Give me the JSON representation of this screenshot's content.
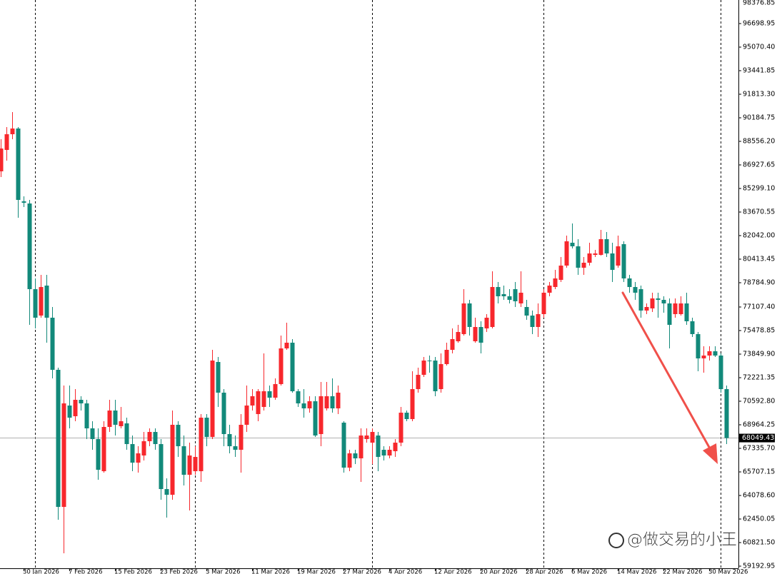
{
  "chart_data": {
    "type": "candlestick",
    "categories": [
      null,
      null,
      null,
      null,
      "30 Jan 2026",
      null,
      null,
      null,
      null,
      null,
      null,
      null,
      "7 Feb 2026",
      null,
      null,
      null,
      null,
      null,
      null,
      null,
      "15 Feb 2026",
      null,
      null,
      null,
      null,
      null,
      null,
      null,
      "23 Feb 2026",
      null,
      null,
      null,
      null,
      null,
      null,
      null,
      "3 Mar 2026",
      null,
      null,
      null,
      null,
      null,
      null,
      null,
      "11 Mar 2026",
      null,
      null,
      null,
      null,
      null,
      null,
      null,
      "19 Mar 2026",
      null,
      null,
      null,
      null,
      null,
      null,
      null,
      "27 Mar 2026",
      null,
      null,
      null,
      null,
      null,
      null,
      null,
      "4 Apr 2026",
      null,
      null,
      null,
      null,
      null,
      null,
      null,
      "12 Apr 2026",
      null,
      null,
      null,
      null,
      null,
      null,
      null,
      "20 Apr 2026",
      null,
      null,
      null,
      null,
      null,
      null,
      null,
      "28 Apr 2026",
      null,
      null,
      null,
      null,
      null,
      null,
      null,
      "6 May 2026",
      null,
      null,
      null,
      null,
      null,
      null,
      null,
      "14 May 2026",
      null,
      null,
      null,
      null,
      null,
      null,
      null,
      "22 May 2026",
      null,
      null,
      null,
      null,
      null,
      null,
      null,
      "30 May 2026",
      null,
      null,
      null
    ],
    "open": [
      86483,
      87963,
      89049,
      89444,
      84410,
      84262,
      78340,
      76514,
      78587,
      76366,
      72764,
      63289,
      70296,
      69556,
      70691,
      70444,
      68717,
      67977,
      65756,
      68816,
      69951,
      68866,
      69063,
      67631,
      66348,
      66842,
      67829,
      68470,
      67631,
      64522,
      64128,
      68964,
      67483,
      65509,
      65756,
      65756,
      69457,
      68125,
      73307,
      71185,
      68322,
      67483,
      67237,
      68964,
      70296,
      69704,
      70198,
      71283,
      70839,
      71777,
      74244,
      74639,
      71283,
      70444,
      70099,
      70592,
      68322,
      70099,
      70938,
      70099,
      69112,
      66003,
      66990,
      66644,
      67977,
      67730,
      68224,
      67237,
      66842,
      67138,
      67730,
      69802,
      69359,
      71431,
      72418,
      73405,
      73405,
      71431,
      73159,
      74146,
      74738,
      75232,
      77353,
      74738,
      75725,
      75626,
      75725,
      78488,
      77995,
      77847,
      78340,
      77353,
      77107,
      76514,
      75725,
      76613,
      78094,
      78488,
      78982,
      79969,
      81548,
      81301,
      79821,
      80167,
      80709,
      80709,
      81795,
      80808,
      79969,
      81450,
      79081,
      78488,
      78340,
      76860,
      77008,
      77699,
      77600,
      77353,
      76613,
      76613,
      77353,
      76120,
      75232,
      73553,
      73751,
      74047,
      73751,
      71431
    ],
    "high": [
      88703,
      89542,
      90580,
      89542,
      84755,
      84509,
      79081,
      79327,
      79327,
      77107,
      72912,
      71678,
      71678,
      71431,
      70938,
      70691,
      69211,
      68717,
      69211,
      70691,
      70691,
      70198,
      69457,
      68224,
      67483,
      68470,
      68717,
      68717,
      67977,
      65263,
      69951,
      69211,
      68224,
      67730,
      67483,
      69704,
      69704,
      74146,
      73652,
      71431,
      68964,
      68224,
      69704,
      71678,
      71431,
      71431,
      73899,
      71678,
      72172,
      75133,
      76021,
      74886,
      71431,
      71431,
      70938,
      70938,
      71925,
      71925,
      72172,
      71678,
      69211,
      67237,
      67237,
      68717,
      68717,
      68717,
      68470,
      67483,
      67483,
      67977,
      70198,
      69951,
      72665,
      72912,
      73652,
      73751,
      73652,
      73899,
      74639,
      75626,
      75873,
      78340,
      77600,
      76366,
      76120,
      76613,
      79574,
      78834,
      78587,
      78340,
      78834,
      79574,
      77600,
      76860,
      77353,
      78340,
      78834,
      79673,
      80561,
      82042,
      82881,
      81795,
      80561,
      81548,
      81055,
      82436,
      82288,
      81548,
      82042,
      81647,
      79327,
      78834,
      78587,
      77353,
      78094,
      78094,
      77847,
      77699,
      77699,
      77847,
      78094,
      76366,
      75380,
      74392,
      74392,
      74392,
      73899,
      71678
    ],
    "low": [
      86088,
      87223,
      88703,
      83275,
      84015,
      75873,
      75626,
      76366,
      74639,
      72172,
      62400,
      60081,
      68717,
      69211,
      69951,
      67977,
      67237,
      65164,
      65657,
      68470,
      68224,
      68717,
      67237,
      65756,
      65657,
      66496,
      67483,
      67237,
      63782,
      62548,
      63782,
      66743,
      64769,
      63042,
      65509,
      65016,
      67483,
      67977,
      70198,
      67483,
      66990,
      66743,
      65657,
      68470,
      69951,
      69211,
      69951,
      70198,
      70691,
      71678,
      74146,
      71185,
      70198,
      69457,
      69802,
      68125,
      67483,
      69951,
      69802,
      69704,
      65657,
      65756,
      66250,
      65016,
      67730,
      66250,
      65756,
      66496,
      66644,
      66743,
      67483,
      69211,
      69211,
      71185,
      72270,
      72566,
      70938,
      71185,
      73060,
      73899,
      74639,
      75133,
      75133,
      74639,
      73899,
      75380,
      75626,
      77353,
      77600,
      77353,
      77107,
      77107,
      76219,
      75232,
      75034,
      76366,
      77847,
      78340,
      78834,
      79821,
      81154,
      79327,
      79327,
      79969,
      80561,
      80660,
      80561,
      78834,
      79821,
      78834,
      78094,
      77600,
      76366,
      76613,
      76761,
      76366,
      76712,
      74244,
      76366,
      76514,
      75873,
      75034,
      72665,
      72566,
      73405,
      73652,
      71185,
      67631
    ],
    "close": [
      88062,
      89049,
      89444,
      84509,
      84312,
      78340,
      76366,
      78488,
      76366,
      72764,
      63289,
      70444,
      69457,
      70691,
      70444,
      68717,
      67977,
      65855,
      68816,
      69951,
      68964,
      69211,
      67631,
      66348,
      66990,
      67829,
      68470,
      67631,
      64522,
      64128,
      68964,
      67483,
      65509,
      66842,
      66743,
      69457,
      68125,
      73405,
      71185,
      68322,
      67483,
      67237,
      68964,
      70296,
      70938,
      71283,
      71283,
      70839,
      71777,
      74244,
      74639,
      71283,
      70444,
      70099,
      70592,
      68224,
      70938,
      70938,
      70099,
      71185,
      66003,
      66990,
      66644,
      68224,
      68224,
      68470,
      66743,
      66842,
      67237,
      67730,
      69802,
      69359,
      71431,
      72418,
      73405,
      73405,
      71283,
      73159,
      74146,
      74886,
      75380,
      77353,
      75725,
      75725,
      74639,
      76366,
      78488,
      77847,
      77847,
      77600,
      77501,
      78094,
      76514,
      75725,
      76613,
      78094,
      78587,
      79081,
      79969,
      81647,
      81301,
      79821,
      80167,
      80808,
      80808,
      81795,
      80808,
      79673,
      81301,
      79081,
      78488,
      78094,
      76860,
      77107,
      77699,
      77600,
      77353,
      75873,
      77353,
      77353,
      76120,
      75232,
      73553,
      73751,
      74047,
      73751,
      71431,
      68049.43
    ],
    "up_color": "#f7272c",
    "down_color": "#12897a",
    "period_separators": [
      6,
      34,
      65,
      95,
      126
    ],
    "ylim": [
      58996,
      98327
    ],
    "yticks": [
      {
        "value": 98376.85,
        "label": "98376.85"
      },
      {
        "value": 96698.95,
        "label": "96698.95"
      },
      {
        "value": 95070.4,
        "label": "95070.40"
      },
      {
        "value": 93441.85,
        "label": "93441.85"
      },
      {
        "value": 91813.3,
        "label": "91813.30"
      },
      {
        "value": 90184.75,
        "label": "90184.75"
      },
      {
        "value": 88556.2,
        "label": "88556.20"
      },
      {
        "value": 86927.65,
        "label": "86927.65"
      },
      {
        "value": 85299.1,
        "label": "85299.10"
      },
      {
        "value": 83670.55,
        "label": "83670.55"
      },
      {
        "value": 82042,
        "label": "82042.00"
      },
      {
        "value": 80413.45,
        "label": "80413.45"
      },
      {
        "value": 78784.9,
        "label": "78784.90"
      },
      {
        "value": 77107.4,
        "label": "77107.40"
      },
      {
        "value": 75478.85,
        "label": "75478.85"
      },
      {
        "value": 73849.9,
        "label": "73849.90"
      },
      {
        "value": 72221.35,
        "label": "72221.35"
      },
      {
        "value": 70592.8,
        "label": "70592.80"
      },
      {
        "value": 68964.25,
        "label": "68964.25"
      },
      {
        "value": 67335.7,
        "label": "67335.70"
      },
      {
        "value": 65707.15,
        "label": "65707.15"
      },
      {
        "value": 64078.6,
        "label": "64078.60"
      },
      {
        "value": 62450.05,
        "label": "62450.05"
      },
      {
        "value": 60821.5,
        "label": "60821.50"
      },
      {
        "value": 59192.95,
        "label": "59192.95"
      }
    ],
    "watermark": "@做交易的小王"
  }
}
